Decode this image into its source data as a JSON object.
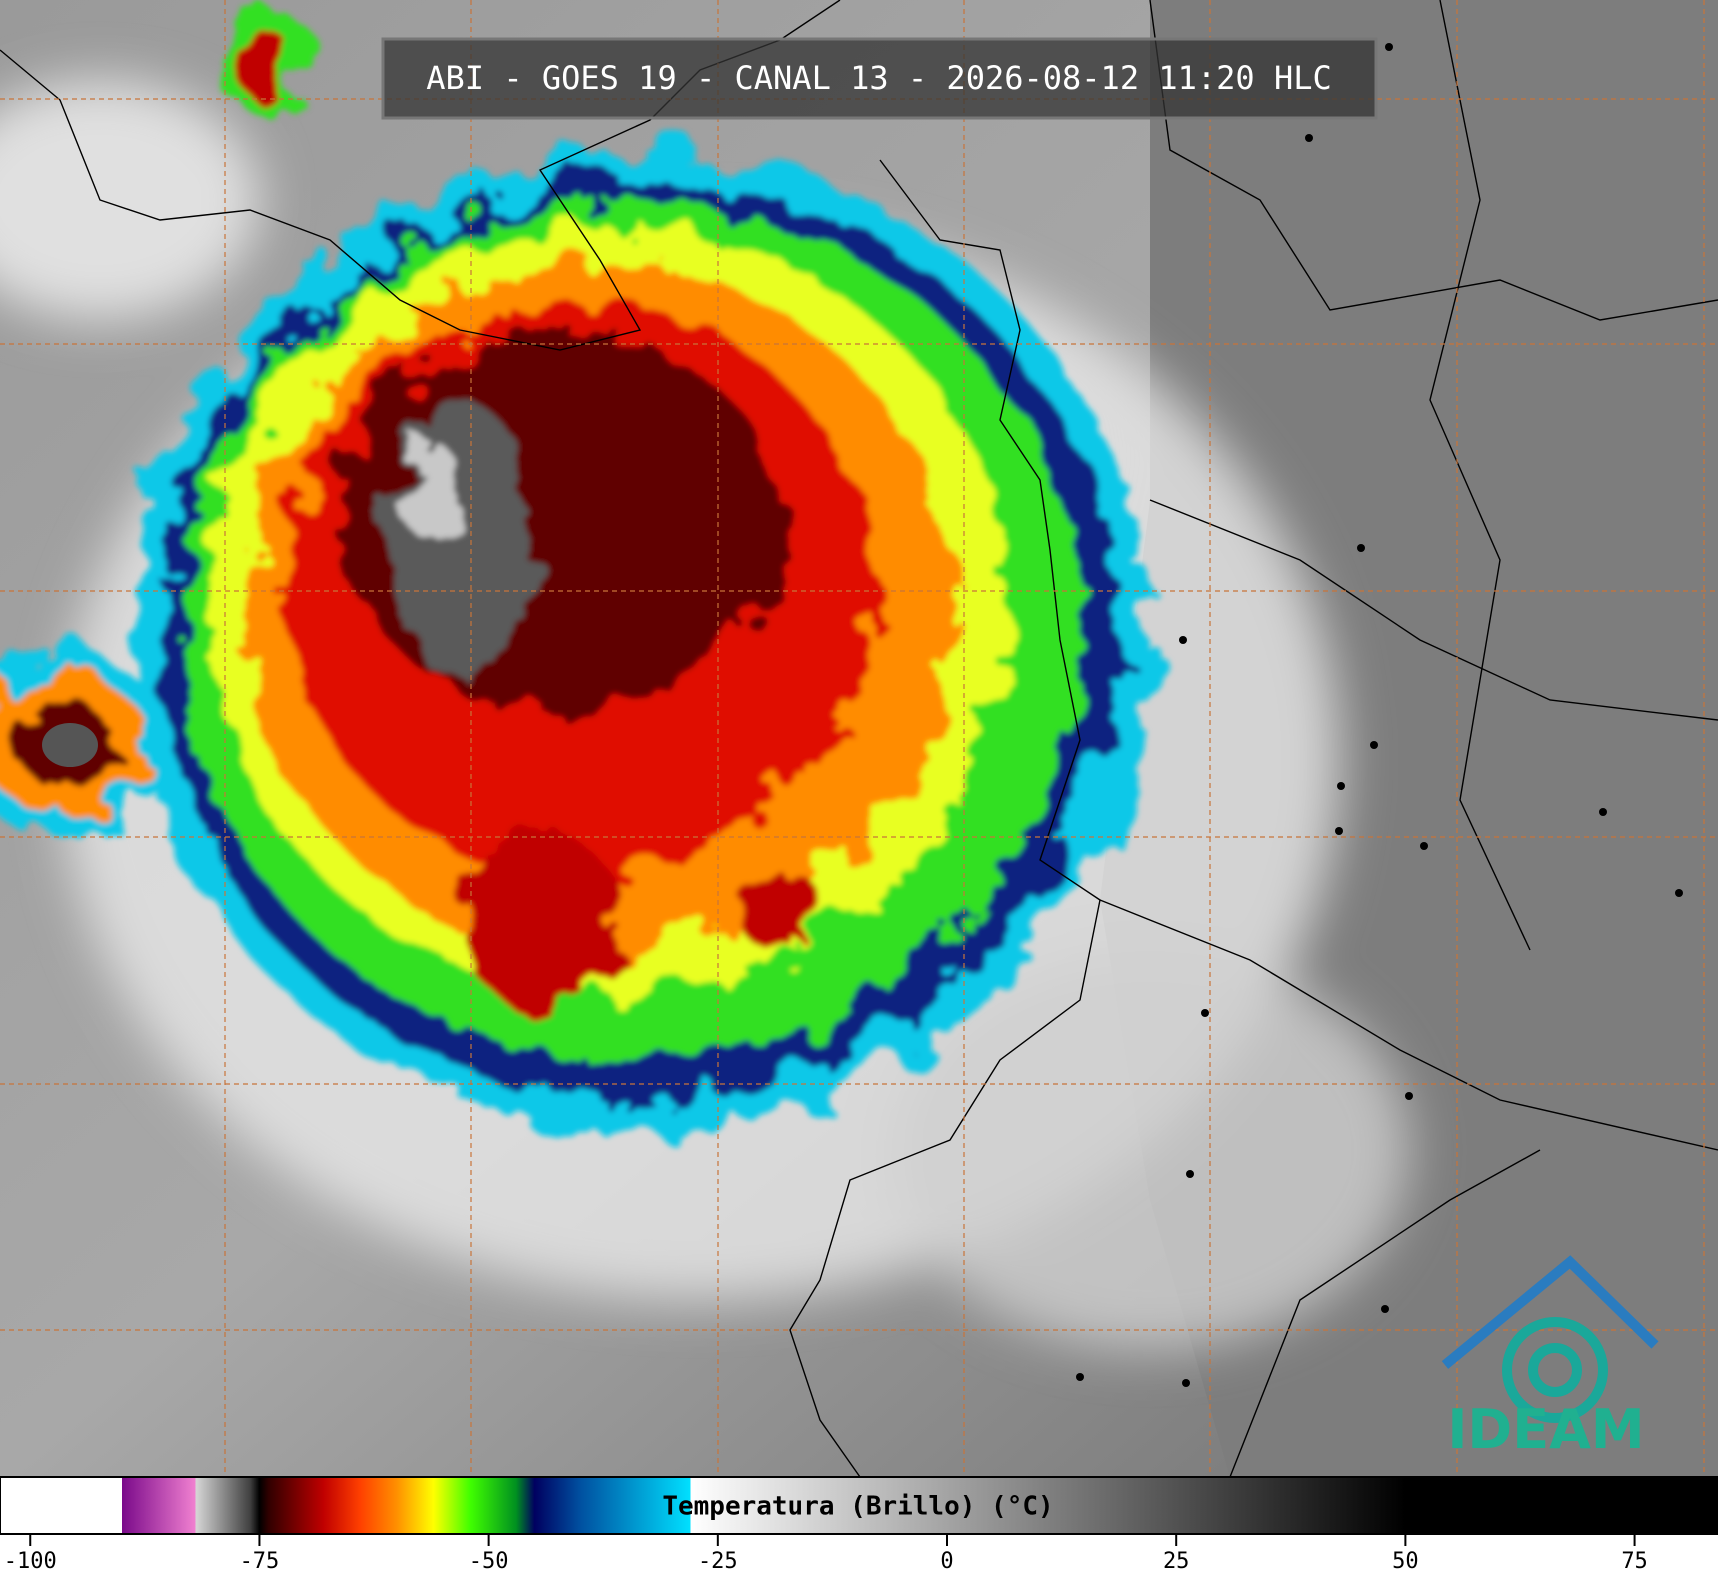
{
  "chart_data": {
    "type": "colorbar",
    "title": "ABI - GOES 19 - CANAL 13 - 2026-08-12 11:20 HLC",
    "colorbar_label": "Temperatura (Brillo) (°C)",
    "xlim": [
      -103.3,
      84.1
    ],
    "xticks": [
      -100,
      -75,
      -50,
      -25,
      0,
      25,
      50,
      75
    ],
    "colormap": [
      {
        "value": -90,
        "color": "#ffffff"
      },
      {
        "value": -90,
        "color": "#7a0a8a"
      },
      {
        "value": -82,
        "color": "#f080d0"
      },
      {
        "value": -82,
        "color": "#d8d8d8"
      },
      {
        "value": -76,
        "color": "#404040"
      },
      {
        "value": -75,
        "color": "#000000"
      },
      {
        "value": -74,
        "color": "#300000"
      },
      {
        "value": -68,
        "color": "#c00000"
      },
      {
        "value": -64,
        "color": "#ff4000"
      },
      {
        "value": -60,
        "color": "#ff9000"
      },
      {
        "value": -56,
        "color": "#ffff00"
      },
      {
        "value": -52,
        "color": "#40ff00"
      },
      {
        "value": -47,
        "color": "#009020"
      },
      {
        "value": -45,
        "color": "#000060"
      },
      {
        "value": -40,
        "color": "#0050a0"
      },
      {
        "value": -28,
        "color": "#00e0ff"
      },
      {
        "value": -28,
        "color": "#ffffff"
      },
      {
        "value": 50,
        "color": "#000000"
      }
    ],
    "logo": "IDEAM"
  }
}
